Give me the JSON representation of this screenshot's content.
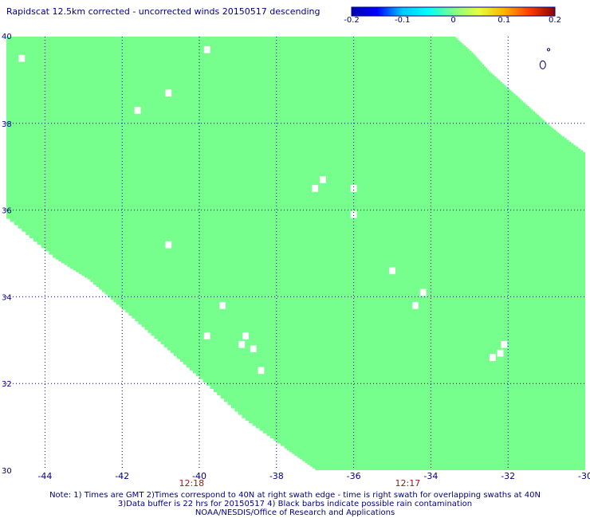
{
  "title": "Rapidscat 12.5km corrected - uncorrected winds 20150517 descending",
  "colorbar": {
    "ticks": [
      "-0.2",
      "-0.1",
      "0",
      "0.1",
      "0.2"
    ],
    "tick_values": [
      -0.2,
      -0.1,
      0,
      0.1,
      0.2
    ],
    "range": [
      -0.2,
      0.2
    ],
    "colors": [
      "#0000b0",
      "#0000ff",
      "#00c8ff",
      "#00ffff",
      "#7dff8c",
      "#e6ff3c",
      "#ffb400",
      "#ff3c00",
      "#8c0000"
    ]
  },
  "notes": [
    "Note: 1) Times are GMT 2)Times correspond to 40N at right swath edge - time is right swath for overlapping swaths at 40N",
    "3)Data buffer is 22 hrs for 20150517 4) Black barbs indicate possible rain contamination",
    "NOAA/NESDIS/Office of Research and Applications"
  ],
  "chart_data": {
    "type": "heatmap",
    "title": "Rapidscat 12.5km corrected - uncorrected winds 20150517 descending",
    "xlim": [
      -45,
      -30
    ],
    "ylim": [
      30,
      40
    ],
    "x_ticks": [
      -44,
      -42,
      -40,
      -38,
      -36,
      -34,
      -32,
      -30
    ],
    "x_tick_labels": [
      "-44",
      "-42",
      "-40",
      "-38",
      "-36",
      "-34",
      "-32",
      "-30"
    ],
    "y_ticks": [
      30,
      32,
      34,
      36,
      38,
      40
    ],
    "y_tick_labels": [
      "30",
      "32",
      "34",
      "36",
      "38",
      "40"
    ],
    "grid": true,
    "field_value": 0,
    "field_color": "#76ff8c",
    "time_labels": [
      {
        "lon": -40.2,
        "label": "12:18"
      },
      {
        "lon": -34.6,
        "label": "12:17"
      }
    ],
    "swath_right_edge": [
      [
        -33.4,
        40
      ],
      [
        -32.9,
        39.6
      ],
      [
        -32.5,
        39.2
      ],
      [
        -32.0,
        38.8
      ],
      [
        -31.5,
        38.4
      ],
      [
        -31.0,
        38.0
      ],
      [
        -30.6,
        37.7
      ],
      [
        -30.0,
        37.3
      ]
    ],
    "swath_lower_edge": [
      [
        -45,
        35.8
      ],
      [
        -43.8,
        34.9
      ],
      [
        -42.9,
        34.4
      ],
      [
        -42.0,
        33.7
      ],
      [
        -41.0,
        32.9
      ],
      [
        -40.0,
        32.1
      ],
      [
        -38.9,
        31.2
      ],
      [
        -37.8,
        30.5
      ],
      [
        -37.0,
        30.0
      ]
    ],
    "coastline_label": "islands near -31.0, 39.5",
    "missing_cells": [
      [
        -44.6,
        39.5
      ],
      [
        -39.8,
        39.7
      ],
      [
        -40.8,
        38.7
      ],
      [
        -41.6,
        38.3
      ],
      [
        -36.8,
        36.7
      ],
      [
        -37.0,
        36.5
      ],
      [
        -36.0,
        36.5
      ],
      [
        -36.0,
        35.9
      ],
      [
        -40.8,
        35.2
      ],
      [
        -35.0,
        34.6
      ],
      [
        -34.2,
        34.1
      ],
      [
        -34.4,
        33.8
      ],
      [
        -39.4,
        33.8
      ],
      [
        -39.8,
        33.1
      ],
      [
        -38.8,
        33.1
      ],
      [
        -38.9,
        32.9
      ],
      [
        -38.6,
        32.8
      ],
      [
        -38.4,
        32.3
      ],
      [
        -32.1,
        32.9
      ],
      [
        -32.2,
        32.7
      ],
      [
        -32.4,
        32.6
      ]
    ]
  }
}
